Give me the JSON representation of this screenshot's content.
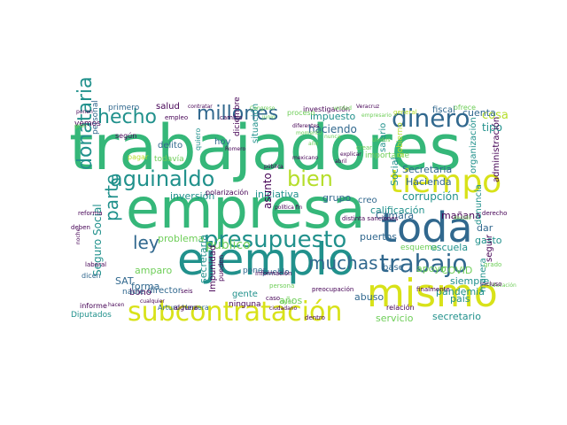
{
  "word_cloud": {
    "colors": {
      "green": "#35b779",
      "teal": "#21918c",
      "blue": "#31688e",
      "indigo": "#3b528b",
      "purple": "#440154",
      "lime": "#b5de2b",
      "yellow": "#d8e219",
      "light": "#6ece58"
    },
    "words": [
      "trabajadores",
      "empresa",
      "ejemplo",
      "toda",
      "mismo",
      "tiempo",
      "presupuesto",
      "subcontratación",
      "trabajo",
      "dinero",
      "millones",
      "hecho",
      "aguinaldo",
      "bien",
      "donataria",
      "parte",
      "muchas",
      "ley",
      "público",
      "problema",
      "calificación",
      "inversión",
      "iniciativa",
      "polarización",
      "corrupción",
      "Secretaria",
      "Hacienda",
      "servicio",
      "secretario",
      "escuela",
      "amparo",
      "años",
      "gente",
      "ninguna",
      "pandemia",
      "país",
      "SAT",
      "director",
      "Diputados",
      "salario",
      "impuesto",
      "cosa",
      "tipo",
      "cuenta",
      "fiscal",
      "haciendo",
      "situación",
      "grupo",
      "creo",
      "Cámara",
      "mañana",
      "gasto",
      "dar",
      "apoyo",
      "COVID",
      "siempre",
      "manera",
      "seguir",
      "base",
      "esquema",
      "puertos",
      "abuso",
      "forma",
      "hoy",
      "delito",
      "todavía",
      "personal",
      "vemos",
      "primero",
      "salud",
      "según",
      "pueblo",
      "poner",
      "bono",
      "Seguro Social",
      "nadie",
      "dicen",
      "Arturo Herrera",
      "informe",
      "denuncia",
      "administración",
      "Social",
      "Impunidad",
      "asunto",
      "organización",
      "gobierno",
      "importante",
      "ofrece",
      "investigación",
      "contratar",
      "empleo",
      "general",
      "laboral",
      "secretaría",
      "diciembre",
      "alguna",
      "proceso",
      "Veracruz",
      "Educación",
      "Congreso",
      "política fin",
      "distinta sanciones",
      "finalmente",
      "persona",
      "dentro",
      "preocupación",
      "mexicano",
      "caso",
      "pagar",
      "deben",
      "pueden",
      "junio",
      "cualquier",
      "gran",
      "relación",
      "diferentes",
      "grado",
      "incluso",
      "cambio",
      "Romero",
      "derecho",
      "nunca",
      "ayer",
      "información",
      "ciudadano",
      "momento",
      "quiero",
      "seis",
      "año",
      "reforma",
      "crear",
      "decidir",
      "hacen",
      "noche",
      "ponen",
      "verdad",
      "explicar",
      "empresario",
      "pública",
      "Unidos",
      "abril",
      "cuidar",
      "entidad",
      "fondos",
      "vacuna"
    ]
  }
}
